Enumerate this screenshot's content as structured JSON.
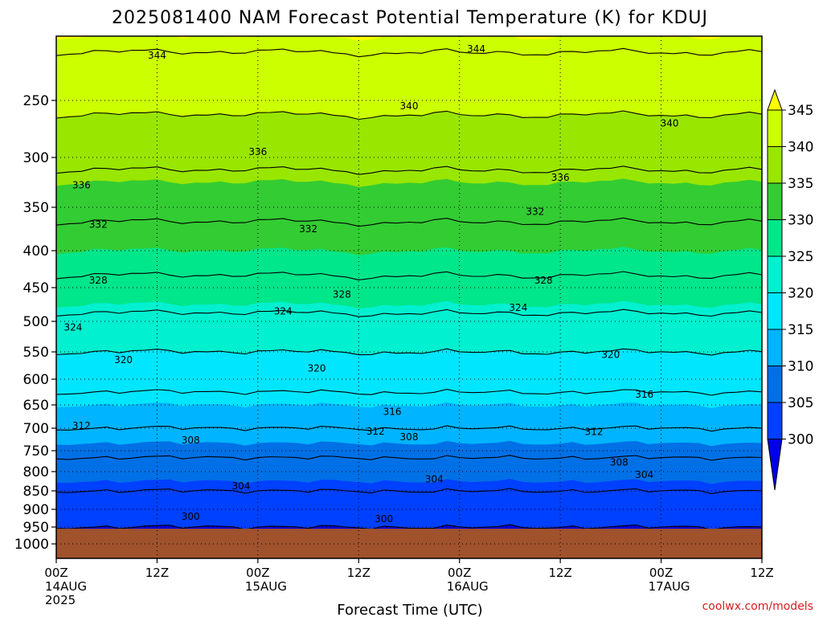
{
  "chart_data": {
    "type": "heatmap",
    "title": "2025081400 NAM Forecast Potential Temperature (K) for KDUJ",
    "xlabel": "Forecast Time (UTC)",
    "ylabel": "",
    "credit": "coolwx.com/models",
    "y_axis": {
      "scale": "pressure",
      "reversed": true,
      "ticks": [
        "250",
        "300",
        "350",
        "400",
        "450",
        "500",
        "550",
        "600",
        "650",
        "700",
        "750",
        "800",
        "850",
        "900",
        "950",
        "1000"
      ]
    },
    "x_axis": {
      "range_hours": [
        0,
        84
      ],
      "ticks": [
        {
          "hour": 0,
          "line1": "00Z",
          "line2": "14AUG",
          "line3": "2025"
        },
        {
          "hour": 12,
          "line1": "12Z",
          "line2": "",
          "line3": ""
        },
        {
          "hour": 24,
          "line1": "00Z",
          "line2": "15AUG",
          "line3": ""
        },
        {
          "hour": 36,
          "line1": "12Z",
          "line2": "",
          "line3": ""
        },
        {
          "hour": 48,
          "line1": "00Z",
          "line2": "16AUG",
          "line3": ""
        },
        {
          "hour": 60,
          "line1": "12Z",
          "line2": "",
          "line3": ""
        },
        {
          "hour": 72,
          "line1": "00Z",
          "line2": "17AUG",
          "line3": ""
        },
        {
          "hour": 84,
          "line1": "12Z",
          "line2": "",
          "line3": ""
        }
      ]
    },
    "colorbar": {
      "labels": [
        "345",
        "340",
        "335",
        "330",
        "325",
        "320",
        "315",
        "310",
        "305",
        "300"
      ],
      "colors": [
        "#ffff00",
        "#ccff00",
        "#99e600",
        "#33cc33",
        "#00e68a",
        "#00f0d0",
        "#00e6ff",
        "#00b4ff",
        "#0070e6",
        "#0040ff",
        "#0000e6"
      ]
    },
    "terrain_color": "#a0522d",
    "surface_pressure_hpa": 955,
    "contour_levels": [
      300,
      304,
      308,
      312,
      316,
      320,
      324,
      328,
      332,
      336,
      340,
      344
    ],
    "profile_levels_hpa": [
      200,
      250,
      300,
      350,
      400,
      450,
      500,
      550,
      600,
      650,
      700,
      750,
      800,
      850,
      900,
      950
    ],
    "profile_theta_k": [
      345,
      341,
      337,
      333,
      330,
      327,
      323,
      320,
      317,
      315,
      312,
      309,
      306,
      304,
      302,
      300
    ],
    "contour_labels": [
      {
        "text": "344",
        "hour": 12,
        "p": 215
      },
      {
        "text": "344",
        "hour": 50,
        "p": 210
      },
      {
        "text": "340",
        "hour": 42,
        "p": 255
      },
      {
        "text": "340",
        "hour": 73,
        "p": 270
      },
      {
        "text": "336",
        "hour": 3,
        "p": 328
      },
      {
        "text": "336",
        "hour": 24,
        "p": 295
      },
      {
        "text": "336",
        "hour": 60,
        "p": 320
      },
      {
        "text": "332",
        "hour": 5,
        "p": 370
      },
      {
        "text": "332",
        "hour": 30,
        "p": 375
      },
      {
        "text": "332",
        "hour": 57,
        "p": 355
      },
      {
        "text": "328",
        "hour": 5,
        "p": 440
      },
      {
        "text": "328",
        "hour": 34,
        "p": 460
      },
      {
        "text": "328",
        "hour": 58,
        "p": 440
      },
      {
        "text": "324",
        "hour": 2,
        "p": 510
      },
      {
        "text": "324",
        "hour": 27,
        "p": 485
      },
      {
        "text": "324",
        "hour": 55,
        "p": 480
      },
      {
        "text": "320",
        "hour": 8,
        "p": 565
      },
      {
        "text": "320",
        "hour": 31,
        "p": 580
      },
      {
        "text": "320",
        "hour": 66,
        "p": 555
      },
      {
        "text": "316",
        "hour": 40,
        "p": 665
      },
      {
        "text": "316",
        "hour": 70,
        "p": 630
      },
      {
        "text": "312",
        "hour": 3,
        "p": 695
      },
      {
        "text": "312",
        "hour": 38,
        "p": 707
      },
      {
        "text": "312",
        "hour": 64,
        "p": 708
      },
      {
        "text": "308",
        "hour": 16,
        "p": 727
      },
      {
        "text": "308",
        "hour": 42,
        "p": 720
      },
      {
        "text": "308",
        "hour": 67,
        "p": 778
      },
      {
        "text": "304",
        "hour": 22,
        "p": 837
      },
      {
        "text": "304",
        "hour": 45,
        "p": 820
      },
      {
        "text": "304",
        "hour": 70,
        "p": 808
      },
      {
        "text": "300",
        "hour": 16,
        "p": 920
      },
      {
        "text": "300",
        "hour": 39,
        "p": 927
      }
    ]
  }
}
